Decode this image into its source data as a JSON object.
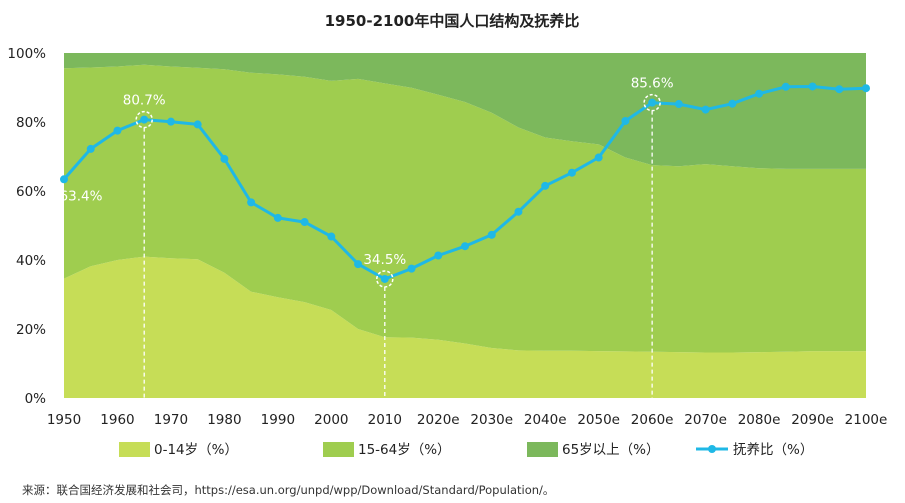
{
  "chart_data": {
    "type": "area",
    "title": "1950-2100年中国人口结构及抚养比",
    "x": [
      "1950",
      "1955",
      "1960",
      "1965",
      "1970",
      "1975",
      "1980",
      "1985",
      "1990",
      "1995",
      "2000",
      "2005",
      "2010",
      "2015",
      "2020e",
      "2025e",
      "2030e",
      "2035e",
      "2040e",
      "2045e",
      "2050e",
      "2055e",
      "2060e",
      "2065e",
      "2070e",
      "2075e",
      "2080e",
      "2085e",
      "2090e",
      "2095e",
      "2100e"
    ],
    "x_tick_labels": [
      "1950",
      "1960",
      "1970",
      "1980",
      "1990",
      "2000",
      "2010",
      "2020e",
      "2030e",
      "2040e",
      "2050e",
      "2060e",
      "2070e",
      "2080e",
      "2090e",
      "2100e"
    ],
    "y_tick_labels": [
      "0%",
      "20%",
      "40%",
      "60%",
      "80%",
      "100%"
    ],
    "ylim": [
      0,
      100
    ],
    "series": [
      {
        "name": "0-14岁（%）",
        "type": "stacked-area",
        "color": "#c6dd57",
        "values": [
          34.6,
          38.2,
          40.0,
          41.0,
          40.5,
          40.2,
          36.3,
          30.8,
          29.2,
          27.8,
          25.5,
          20.0,
          17.6,
          17.5,
          16.9,
          15.8,
          14.5,
          13.8,
          13.7,
          13.7,
          13.6,
          13.5,
          13.4,
          13.3,
          13.2,
          13.2,
          13.3,
          13.4,
          13.6,
          13.6,
          13.6
        ]
      },
      {
        "name": "15-64岁（%）",
        "type": "stacked-area",
        "color": "#9fcd4f",
        "values": [
          61.0,
          57.6,
          56.1,
          55.6,
          55.6,
          55.5,
          59.0,
          63.5,
          64.6,
          65.3,
          66.4,
          72.5,
          73.6,
          72.4,
          71.0,
          70.0,
          68.2,
          64.6,
          61.8,
          60.7,
          59.9,
          56.2,
          54.1,
          53.9,
          54.6,
          54.0,
          53.3,
          53.0,
          52.8,
          52.8,
          52.8
        ]
      },
      {
        "name": "65岁以上（%）",
        "type": "stacked-area",
        "color": "#7cb85c",
        "values": [
          4.4,
          4.2,
          3.9,
          3.4,
          3.9,
          4.3,
          4.7,
          5.7,
          6.2,
          6.9,
          8.1,
          7.5,
          8.8,
          10.1,
          12.1,
          14.2,
          17.3,
          21.6,
          24.5,
          25.6,
          26.5,
          30.3,
          32.5,
          32.8,
          32.2,
          32.8,
          33.4,
          33.6,
          33.6,
          33.6,
          33.6
        ]
      },
      {
        "name": "抚养比（%）",
        "type": "line",
        "color": "#1fb8e6",
        "values": [
          63.4,
          72.2,
          77.5,
          80.7,
          80.1,
          79.3,
          69.3,
          56.7,
          52.2,
          51.0,
          46.8,
          38.8,
          34.5,
          37.5,
          41.3,
          44.0,
          47.3,
          54.0,
          61.5,
          65.3,
          69.7,
          80.3,
          85.6,
          85.2,
          83.6,
          85.3,
          88.2,
          90.2,
          90.3,
          89.5,
          89.8
        ]
      }
    ],
    "annotations": [
      {
        "x": "1950",
        "text": "63.4%"
      },
      {
        "x": "1965",
        "text": "80.7%"
      },
      {
        "x": "2010",
        "text": "34.5%"
      },
      {
        "x": "2060e",
        "text": "85.6%"
      }
    ],
    "legend_position": "bottom",
    "grid": false
  },
  "source": "来源：联合国经济发展和社会司，https://esa.un.org/unpd/wpp/Download/Standard/Population/。"
}
